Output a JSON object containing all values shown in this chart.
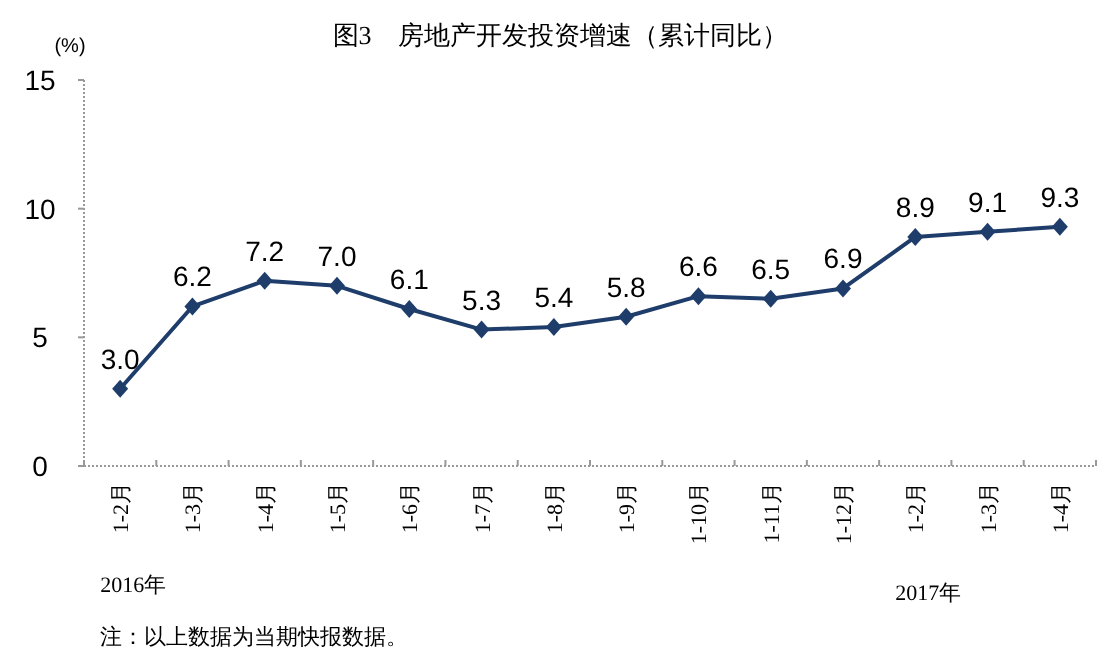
{
  "chart_data": {
    "type": "line",
    "title": "图3　房地产开发投资增速（累计同比）",
    "ylabel": "(%)",
    "categories": [
      "1-2月",
      "1-3月",
      "1-4月",
      "1-5月",
      "1-6月",
      "1-7月",
      "1-8月",
      "1-9月",
      "1-10月",
      "1-11月",
      "1-12月",
      "1-2月",
      "1-3月",
      "1-4月"
    ],
    "series": [
      {
        "color": "#1f3d6b",
        "values": [
          3.0,
          6.2,
          7.2,
          7.0,
          6.1,
          5.3,
          5.4,
          5.8,
          6.6,
          6.5,
          6.9,
          8.9,
          9.1,
          9.3
        ],
        "value_labels": [
          "3.0",
          "6.2",
          "7.2",
          "7.0",
          "6.1",
          "5.3",
          "5.4",
          "5.8",
          "6.6",
          "6.5",
          "6.9",
          "8.9",
          "9.1",
          "9.3"
        ]
      }
    ],
    "ylim": [
      0,
      15
    ],
    "yticks": [
      0,
      5,
      10,
      15
    ],
    "marker": "diamond",
    "line_style": "solid",
    "annotations": [
      "2016年",
      "2017年",
      "注：以上数据为当期快报数据。"
    ]
  }
}
